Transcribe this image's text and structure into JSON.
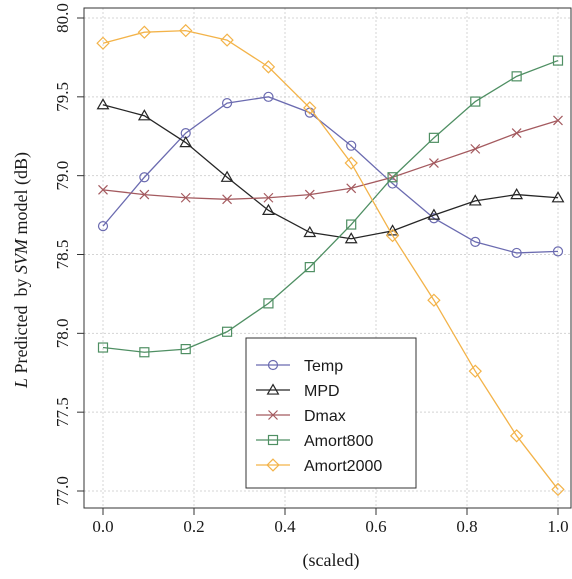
{
  "chart_data": {
    "type": "line",
    "xlabel": "(scaled)",
    "ylabel": {
      "italic_symbol": "L",
      "middle": " Predicted  by ",
      "italic_model": "SVM",
      "suffix": " model (dB)"
    },
    "xlim": [
      0.0,
      1.0
    ],
    "ylim": [
      77.0,
      80.0
    ],
    "x_ticks": [
      "0.0",
      "0.2",
      "0.4",
      "0.6",
      "0.8",
      "1.0"
    ],
    "y_ticks": [
      "77.0",
      "77.5",
      "78.0",
      "78.5",
      "79.0",
      "79.5",
      "80.0"
    ],
    "grid": true,
    "legend_position": "bottom-center",
    "x": [
      0.0,
      0.0909,
      0.1818,
      0.2727,
      0.3636,
      0.4545,
      0.5455,
      0.6364,
      0.7273,
      0.8182,
      0.9091,
      1.0
    ],
    "series": [
      {
        "name": "Temp",
        "marker": "circle",
        "color": "#6b6bb0",
        "values": [
          78.68,
          78.99,
          79.27,
          79.46,
          79.5,
          79.4,
          79.19,
          78.95,
          78.73,
          78.58,
          78.51,
          78.52
        ]
      },
      {
        "name": "MPD",
        "marker": "triangle",
        "color": "#262626",
        "values": [
          79.45,
          79.38,
          79.21,
          78.99,
          78.78,
          78.64,
          78.6,
          78.65,
          78.75,
          78.84,
          78.88,
          78.86
        ]
      },
      {
        "name": "Dmax",
        "marker": "x",
        "color": "#a45a5f",
        "values": [
          78.91,
          78.88,
          78.86,
          78.85,
          78.86,
          78.88,
          78.92,
          78.99,
          79.08,
          79.17,
          79.27,
          79.35
        ]
      },
      {
        "name": "Amort800",
        "marker": "square",
        "color": "#4f8f63",
        "values": [
          77.91,
          77.88,
          77.9,
          78.01,
          78.19,
          78.42,
          78.69,
          78.99,
          79.24,
          79.47,
          79.63,
          79.73
        ]
      },
      {
        "name": "Amort2000",
        "marker": "diamond",
        "color": "#f3b349",
        "values": [
          79.84,
          79.91,
          79.92,
          79.86,
          79.69,
          79.43,
          79.08,
          78.62,
          78.21,
          77.76,
          77.35,
          77.01
        ]
      }
    ]
  }
}
